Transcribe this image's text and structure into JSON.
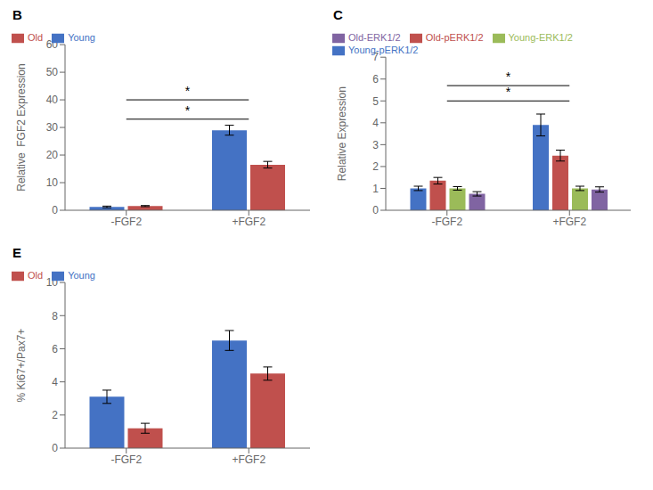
{
  "chart_data": [
    {
      "type": "bar",
      "title": "B",
      "categories": [
        "-FGF2",
        "+FGF2"
      ],
      "series": [
        {
          "name": "Young",
          "color": "#4472C4",
          "values": [
            1.2,
            29.0
          ],
          "errors": [
            0.3,
            1.8
          ]
        },
        {
          "name": "Old",
          "color": "#C0504D",
          "values": [
            1.5,
            16.5
          ],
          "errors": [
            0.2,
            1.2
          ]
        }
      ],
      "ylabel": "Relative  FGF2 Expression",
      "ylim": [
        0,
        60
      ],
      "yticks": [
        0,
        10,
        20,
        30,
        40,
        50,
        60
      ],
      "legend": "upper left",
      "annotations": [
        {
          "text": "*",
          "y": 33
        },
        {
          "text": "*",
          "y": 40
        }
      ]
    },
    {
      "type": "bar",
      "title": "C",
      "categories": [
        "-FGF2",
        "+FGF2"
      ],
      "series": [
        {
          "name": "Young-pERK1/2",
          "color": "#4472C4",
          "values": [
            1.0,
            3.9
          ],
          "errors": [
            0.1,
            0.5
          ]
        },
        {
          "name": "Old-pERK1/2",
          "color": "#C0504D",
          "values": [
            1.35,
            2.5
          ],
          "errors": [
            0.15,
            0.25
          ]
        },
        {
          "name": "Young-ERK1/2",
          "color": "#9BBB59",
          "values": [
            1.0,
            1.0
          ],
          "errors": [
            0.08,
            0.1
          ]
        },
        {
          "name": "Old-ERK1/2",
          "color": "#8064A2",
          "values": [
            0.75,
            0.95
          ],
          "errors": [
            0.1,
            0.12
          ]
        }
      ],
      "ylabel": "Relative Expression",
      "ylim": [
        0,
        7
      ],
      "yticks": [
        0,
        1,
        2,
        3,
        4,
        5,
        6,
        7
      ],
      "legend": "upper left",
      "annotations": [
        {
          "text": "*",
          "y": 5.0
        },
        {
          "text": "*",
          "y": 5.7
        }
      ]
    },
    {
      "type": "bar",
      "title": "E",
      "categories": [
        "-FGF2",
        "+FGF2"
      ],
      "series": [
        {
          "name": "Young",
          "color": "#4472C4",
          "values": [
            3.1,
            6.5
          ],
          "errors": [
            0.4,
            0.6
          ]
        },
        {
          "name": "Old",
          "color": "#C0504D",
          "values": [
            1.2,
            4.5
          ],
          "errors": [
            0.3,
            0.4
          ]
        }
      ],
      "ylabel": "% Ki67+/Pax7+",
      "ylim": [
        0,
        10
      ],
      "yticks": [
        0,
        2,
        4,
        6,
        8,
        10
      ],
      "legend": "upper left"
    }
  ]
}
